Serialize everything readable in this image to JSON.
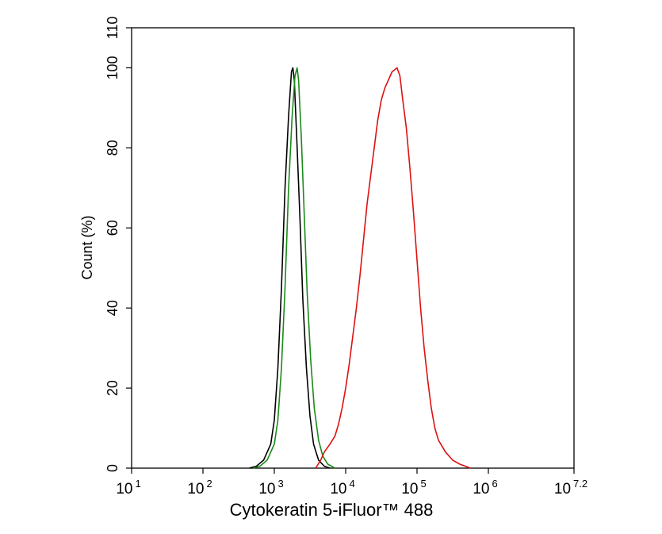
{
  "chart_data": {
    "type": "line",
    "xlabel": "Cytokeratin 5-iFluor™ 488",
    "ylabel": "Count  (%)",
    "x_scale": "log",
    "xlim": [
      1,
      7.2
    ],
    "ylim": [
      0,
      110
    ],
    "x_ticks": [
      {
        "base": "10",
        "exp": "1",
        "value": 1
      },
      {
        "base": "10",
        "exp": "2",
        "value": 2
      },
      {
        "base": "10",
        "exp": "3",
        "value": 3
      },
      {
        "base": "10",
        "exp": "4",
        "value": 4
      },
      {
        "base": "10",
        "exp": "5",
        "value": 5
      },
      {
        "base": "10",
        "exp": "6",
        "value": 6
      },
      {
        "base": "10",
        "exp": "7.2",
        "value": 7.2
      }
    ],
    "y_ticks": [
      "0",
      "20",
      "40",
      "60",
      "80",
      "100",
      "110"
    ],
    "y_tick_values": [
      0,
      20,
      40,
      60,
      80,
      100,
      110
    ],
    "grid": false,
    "legend": "none",
    "series": [
      {
        "color": "#000000",
        "points": [
          [
            2.65,
            0
          ],
          [
            2.75,
            0.5
          ],
          [
            2.85,
            2
          ],
          [
            2.95,
            6
          ],
          [
            3.0,
            12
          ],
          [
            3.05,
            25
          ],
          [
            3.1,
            45
          ],
          [
            3.15,
            70
          ],
          [
            3.2,
            88
          ],
          [
            3.24,
            99
          ],
          [
            3.26,
            100
          ],
          [
            3.28,
            97
          ],
          [
            3.32,
            80
          ],
          [
            3.36,
            62
          ],
          [
            3.4,
            42
          ],
          [
            3.45,
            25
          ],
          [
            3.5,
            13
          ],
          [
            3.55,
            6
          ],
          [
            3.62,
            2
          ],
          [
            3.7,
            0.5
          ],
          [
            3.78,
            0
          ]
        ]
      },
      {
        "color": "#1a8a1a",
        "points": [
          [
            2.7,
            0
          ],
          [
            2.8,
            0.5
          ],
          [
            2.9,
            2
          ],
          [
            3.0,
            6
          ],
          [
            3.05,
            12
          ],
          [
            3.1,
            25
          ],
          [
            3.15,
            45
          ],
          [
            3.2,
            70
          ],
          [
            3.25,
            88
          ],
          [
            3.29,
            98
          ],
          [
            3.32,
            100
          ],
          [
            3.34,
            97
          ],
          [
            3.38,
            82
          ],
          [
            3.42,
            63
          ],
          [
            3.46,
            44
          ],
          [
            3.51,
            27
          ],
          [
            3.56,
            15
          ],
          [
            3.62,
            7
          ],
          [
            3.68,
            3
          ],
          [
            3.75,
            1
          ],
          [
            3.85,
            0
          ]
        ]
      },
      {
        "color": "#dd1111",
        "points": [
          [
            3.58,
            0
          ],
          [
            3.65,
            2
          ],
          [
            3.7,
            4
          ],
          [
            3.78,
            6
          ],
          [
            3.85,
            8
          ],
          [
            3.9,
            11
          ],
          [
            3.95,
            15
          ],
          [
            4.0,
            20
          ],
          [
            4.05,
            26
          ],
          [
            4.1,
            33
          ],
          [
            4.15,
            40
          ],
          [
            4.2,
            48
          ],
          [
            4.25,
            57
          ],
          [
            4.3,
            66
          ],
          [
            4.35,
            73
          ],
          [
            4.4,
            80
          ],
          [
            4.45,
            87
          ],
          [
            4.5,
            92
          ],
          [
            4.55,
            95
          ],
          [
            4.6,
            97
          ],
          [
            4.65,
            99
          ],
          [
            4.72,
            100
          ],
          [
            4.76,
            98
          ],
          [
            4.8,
            92
          ],
          [
            4.85,
            85
          ],
          [
            4.9,
            75
          ],
          [
            4.95,
            64
          ],
          [
            5.0,
            52
          ],
          [
            5.05,
            40
          ],
          [
            5.1,
            30
          ],
          [
            5.15,
            22
          ],
          [
            5.2,
            15
          ],
          [
            5.25,
            10
          ],
          [
            5.3,
            7
          ],
          [
            5.4,
            4
          ],
          [
            5.5,
            2
          ],
          [
            5.6,
            1
          ],
          [
            5.75,
            0
          ]
        ]
      }
    ]
  }
}
